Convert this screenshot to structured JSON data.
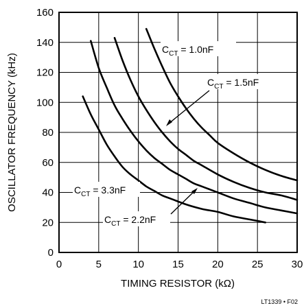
{
  "chart_data": {
    "type": "line",
    "xlabel": "TIMING RESISTOR (kΩ)",
    "ylabel": "OSCILLATOR FREQUENCY (kHz)",
    "xlim": [
      0,
      30
    ],
    "ylim": [
      0,
      160
    ],
    "x_ticks": [
      0,
      5,
      10,
      15,
      20,
      25,
      30
    ],
    "y_ticks": [
      0,
      20,
      40,
      60,
      80,
      100,
      120,
      140,
      160
    ],
    "grid": true,
    "figure_label": "LT1339 • F02",
    "series": [
      {
        "name": "CCT = 1.0nF",
        "label_main": "C",
        "label_sub": "CT",
        "label_rest": " = 1.0nF",
        "x": [
          11,
          12,
          13,
          14,
          15,
          16,
          17,
          18,
          19,
          20,
          22,
          24,
          26,
          28,
          30
        ],
        "y": [
          149,
          136,
          124,
          113,
          104,
          96,
          89,
          83,
          78,
          73,
          66,
          60,
          55,
          51,
          48
        ]
      },
      {
        "name": "CCT = 1.5nF",
        "label_main": "C",
        "label_sub": "CT",
        "label_rest": " = 1.5nF",
        "x": [
          7,
          8,
          9,
          10,
          11,
          12,
          13,
          14,
          15,
          16,
          17,
          18,
          20,
          22,
          24,
          26,
          28,
          30
        ],
        "y": [
          143,
          128,
          115,
          104,
          95,
          87,
          80,
          74,
          69,
          65,
          61,
          58,
          52,
          47,
          43,
          40,
          38,
          35
        ]
      },
      {
        "name": "CCT = 2.2nF",
        "label_main": "C",
        "label_sub": "CT",
        "label_rest": " = 2.2nF",
        "x": [
          4,
          5,
          6,
          7,
          8,
          9,
          10,
          11,
          12,
          13,
          14,
          15,
          16,
          17,
          18,
          20,
          22,
          24,
          26,
          28,
          30
        ],
        "y": [
          141,
          123,
          110,
          98,
          89,
          81,
          74,
          68,
          63,
          59,
          55,
          52,
          49,
          46,
          44,
          40,
          36,
          33,
          30,
          28,
          26
        ]
      },
      {
        "name": "CCT = 3.3nF",
        "label_main": "C",
        "label_sub": "CT",
        "label_rest": " = 3.3nF",
        "x": [
          3,
          4,
          5,
          6,
          7,
          8,
          9,
          10,
          11,
          12,
          13,
          14,
          16,
          18,
          20,
          22,
          24,
          26
        ],
        "y": [
          104,
          92,
          82,
          72,
          64,
          57,
          52,
          48,
          44,
          41,
          38,
          36,
          32,
          29,
          27,
          24,
          22,
          20
        ]
      }
    ]
  }
}
